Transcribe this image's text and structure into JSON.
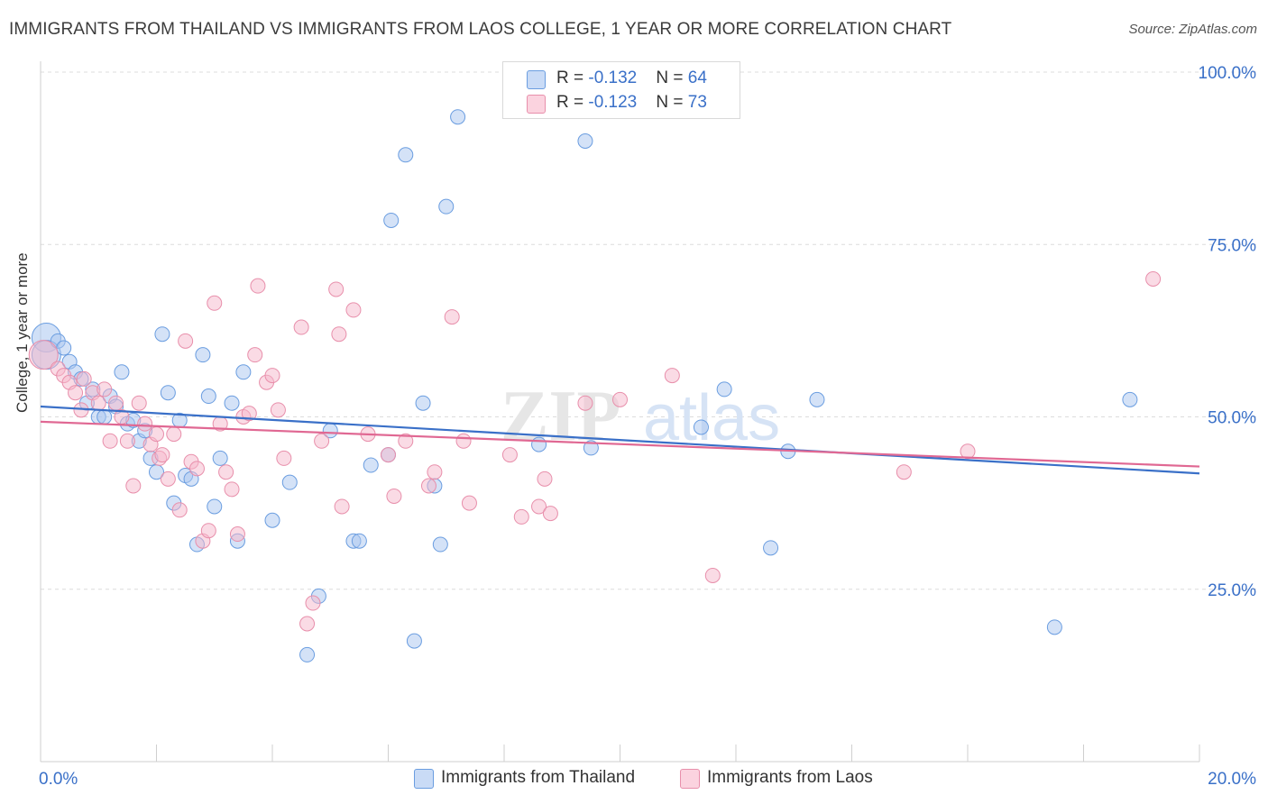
{
  "title": "IMMIGRANTS FROM THAILAND VS IMMIGRANTS FROM LAOS COLLEGE, 1 YEAR OR MORE CORRELATION CHART",
  "source": "Source: ZipAtlas.com",
  "watermark": "ZIPatlas",
  "colors": {
    "thailand_fill": "#a9c6f0",
    "thailand_stroke": "#6a9de0",
    "thailand_line": "#3a70c8",
    "laos_fill": "#f5b8cb",
    "laos_stroke": "#e88fab",
    "laos_line": "#e06893",
    "value_text": "#3a70c8"
  },
  "legend": {
    "rows": [
      {
        "r_label": "R = ",
        "r_value": "-0.132",
        "n_label": "N = ",
        "n_value": "64"
      },
      {
        "r_label": "R = ",
        "r_value": "-0.123",
        "n_label": "N = ",
        "n_value": "73"
      }
    ]
  },
  "bottom_legend": [
    "Immigrants from Thailand",
    "Immigrants from Laos"
  ],
  "chart_data": {
    "type": "scatter",
    "title": "IMMIGRANTS FROM THAILAND VS IMMIGRANTS FROM LAOS COLLEGE, 1 YEAR OR MORE CORRELATION CHART",
    "xlabel": "",
    "ylabel": "College, 1 year or more",
    "xlim": [
      0,
      20
    ],
    "ylim": [
      0,
      105
    ],
    "x_tick_labels": [
      "0.0%",
      "20.0%"
    ],
    "y_tick_labels": [
      "25.0%",
      "50.0%",
      "75.0%",
      "100.0%"
    ],
    "y_ticks": [
      25,
      50,
      75,
      100
    ],
    "grid": true,
    "legend_position": "top-center",
    "series": [
      {
        "name": "Immigrants from Thailand",
        "color": "#a9c6f0",
        "trend": {
          "x": [
            0,
            20
          ],
          "y": [
            51.5,
            41.8
          ]
        },
        "points": [
          {
            "x": 0.1,
            "y": 61.5,
            "big": true
          },
          {
            "x": 0.1,
            "y": 59,
            "big": true
          },
          {
            "x": 0.3,
            "y": 61
          },
          {
            "x": 0.4,
            "y": 60
          },
          {
            "x": 0.5,
            "y": 58
          },
          {
            "x": 0.6,
            "y": 56.5
          },
          {
            "x": 0.7,
            "y": 55.5
          },
          {
            "x": 0.8,
            "y": 52
          },
          {
            "x": 0.9,
            "y": 54
          },
          {
            "x": 1.0,
            "y": 50
          },
          {
            "x": 1.1,
            "y": 50
          },
          {
            "x": 1.2,
            "y": 53
          },
          {
            "x": 1.3,
            "y": 51.5
          },
          {
            "x": 1.4,
            "y": 56.5
          },
          {
            "x": 1.5,
            "y": 49
          },
          {
            "x": 1.6,
            "y": 49.5
          },
          {
            "x": 1.7,
            "y": 46.5
          },
          {
            "x": 1.8,
            "y": 48
          },
          {
            "x": 1.9,
            "y": 44
          },
          {
            "x": 2.0,
            "y": 42
          },
          {
            "x": 2.1,
            "y": 62
          },
          {
            "x": 2.2,
            "y": 53.5
          },
          {
            "x": 2.3,
            "y": 37.5
          },
          {
            "x": 2.4,
            "y": 49.5
          },
          {
            "x": 2.5,
            "y": 41.5
          },
          {
            "x": 2.6,
            "y": 41
          },
          {
            "x": 2.7,
            "y": 31.5
          },
          {
            "x": 2.8,
            "y": 59
          },
          {
            "x": 2.9,
            "y": 53
          },
          {
            "x": 3.0,
            "y": 37
          },
          {
            "x": 3.1,
            "y": 44
          },
          {
            "x": 3.3,
            "y": 52
          },
          {
            "x": 3.4,
            "y": 32
          },
          {
            "x": 3.5,
            "y": 56.5
          },
          {
            "x": 4.0,
            "y": 35
          },
          {
            "x": 4.3,
            "y": 40.5
          },
          {
            "x": 4.8,
            "y": 24
          },
          {
            "x": 4.6,
            "y": 15.5
          },
          {
            "x": 5.0,
            "y": 48
          },
          {
            "x": 5.4,
            "y": 32
          },
          {
            "x": 5.5,
            "y": 32
          },
          {
            "x": 5.7,
            "y": 43
          },
          {
            "x": 6.0,
            "y": 44.5
          },
          {
            "x": 6.05,
            "y": 78.5
          },
          {
            "x": 6.3,
            "y": 88
          },
          {
            "x": 6.45,
            "y": 17.5
          },
          {
            "x": 6.6,
            "y": 52
          },
          {
            "x": 6.8,
            "y": 40
          },
          {
            "x": 6.9,
            "y": 31.5
          },
          {
            "x": 7.0,
            "y": 80.5
          },
          {
            "x": 7.2,
            "y": 93.5
          },
          {
            "x": 8.6,
            "y": 46
          },
          {
            "x": 9.4,
            "y": 90
          },
          {
            "x": 9.5,
            "y": 45.5
          },
          {
            "x": 11.4,
            "y": 48.5
          },
          {
            "x": 11.8,
            "y": 54
          },
          {
            "x": 12.6,
            "y": 31
          },
          {
            "x": 12.9,
            "y": 45
          },
          {
            "x": 13.4,
            "y": 52.5
          },
          {
            "x": 17.5,
            "y": 19.5
          },
          {
            "x": 18.8,
            "y": 52.5
          }
        ]
      },
      {
        "name": "Immigrants from Laos",
        "color": "#f5b8cb",
        "trend": {
          "x": [
            0,
            20
          ],
          "y": [
            49.3,
            42.8
          ]
        },
        "points": [
          {
            "x": 0.05,
            "y": 59,
            "big": true
          },
          {
            "x": 0.3,
            "y": 57
          },
          {
            "x": 0.4,
            "y": 56
          },
          {
            "x": 0.5,
            "y": 55
          },
          {
            "x": 0.6,
            "y": 53.5
          },
          {
            "x": 0.7,
            "y": 51
          },
          {
            "x": 0.75,
            "y": 55.5
          },
          {
            "x": 0.9,
            "y": 53.5
          },
          {
            "x": 1.0,
            "y": 52
          },
          {
            "x": 1.1,
            "y": 54
          },
          {
            "x": 1.2,
            "y": 46.5
          },
          {
            "x": 1.3,
            "y": 52
          },
          {
            "x": 1.4,
            "y": 50
          },
          {
            "x": 1.5,
            "y": 46.5
          },
          {
            "x": 1.6,
            "y": 40
          },
          {
            "x": 1.7,
            "y": 52
          },
          {
            "x": 1.8,
            "y": 49
          },
          {
            "x": 1.9,
            "y": 46
          },
          {
            "x": 2.0,
            "y": 47.5
          },
          {
            "x": 2.05,
            "y": 44
          },
          {
            "x": 2.1,
            "y": 44.5
          },
          {
            "x": 2.2,
            "y": 41
          },
          {
            "x": 2.3,
            "y": 47.5
          },
          {
            "x": 2.4,
            "y": 36.5
          },
          {
            "x": 2.5,
            "y": 61
          },
          {
            "x": 2.6,
            "y": 43.5
          },
          {
            "x": 2.7,
            "y": 42.5
          },
          {
            "x": 2.8,
            "y": 32
          },
          {
            "x": 2.9,
            "y": 33.5
          },
          {
            "x": 3.0,
            "y": 66.5
          },
          {
            "x": 3.1,
            "y": 49
          },
          {
            "x": 3.2,
            "y": 42
          },
          {
            "x": 3.3,
            "y": 39.5
          },
          {
            "x": 3.4,
            "y": 33
          },
          {
            "x": 3.5,
            "y": 50
          },
          {
            "x": 3.6,
            "y": 50.5
          },
          {
            "x": 3.7,
            "y": 59
          },
          {
            "x": 3.75,
            "y": 69
          },
          {
            "x": 3.9,
            "y": 55
          },
          {
            "x": 4.0,
            "y": 56
          },
          {
            "x": 4.1,
            "y": 51
          },
          {
            "x": 4.2,
            "y": 44
          },
          {
            "x": 4.5,
            "y": 63
          },
          {
            "x": 4.6,
            "y": 20
          },
          {
            "x": 4.7,
            "y": 23
          },
          {
            "x": 4.85,
            "y": 46.5
          },
          {
            "x": 5.1,
            "y": 68.5
          },
          {
            "x": 5.15,
            "y": 62
          },
          {
            "x": 5.2,
            "y": 37
          },
          {
            "x": 5.4,
            "y": 65.5
          },
          {
            "x": 5.65,
            "y": 47.5
          },
          {
            "x": 6.0,
            "y": 44.5
          },
          {
            "x": 6.1,
            "y": 38.5
          },
          {
            "x": 6.3,
            "y": 46.5
          },
          {
            "x": 6.7,
            "y": 40
          },
          {
            "x": 6.8,
            "y": 42
          },
          {
            "x": 7.1,
            "y": 64.5
          },
          {
            "x": 7.3,
            "y": 46.5
          },
          {
            "x": 7.4,
            "y": 37.5
          },
          {
            "x": 8.1,
            "y": 44.5
          },
          {
            "x": 8.3,
            "y": 35.5
          },
          {
            "x": 8.6,
            "y": 37
          },
          {
            "x": 8.7,
            "y": 41
          },
          {
            "x": 8.8,
            "y": 36
          },
          {
            "x": 9.4,
            "y": 52
          },
          {
            "x": 10.0,
            "y": 52.5
          },
          {
            "x": 10.9,
            "y": 56
          },
          {
            "x": 11.6,
            "y": 27
          },
          {
            "x": 14.9,
            "y": 42
          },
          {
            "x": 16.0,
            "y": 45
          },
          {
            "x": 19.2,
            "y": 70
          }
        ]
      }
    ]
  }
}
